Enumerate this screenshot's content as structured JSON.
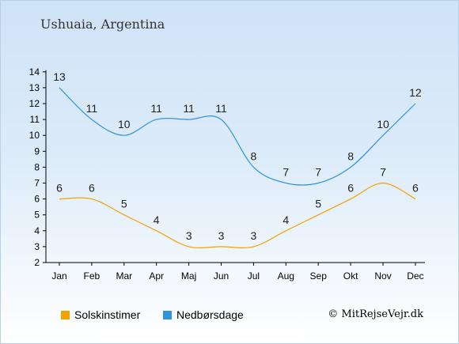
{
  "title": "Ushuaia, Argentina",
  "credit": "© MitRejseVejr.dk",
  "chart_data": {
    "type": "line",
    "categories": [
      "Jan",
      "Feb",
      "Mar",
      "Apr",
      "Maj",
      "Jun",
      "Jul",
      "Aug",
      "Sep",
      "Okt",
      "Nov",
      "Dec"
    ],
    "ylim": [
      2,
      14
    ],
    "yticks": [
      2,
      3,
      4,
      5,
      6,
      7,
      8,
      9,
      10,
      11,
      12,
      13,
      14
    ],
    "grid": false,
    "legend_position": "bottom",
    "series": [
      {
        "name": "Solskinstimer",
        "color": "#f5a100",
        "values": [
          6,
          6,
          5,
          4,
          3,
          3,
          3,
          4,
          5,
          6,
          7,
          6
        ]
      },
      {
        "name": "Nedbørsdage",
        "color": "#2f94dc",
        "values": [
          13,
          11,
          10,
          11,
          11,
          11,
          8,
          7,
          7,
          8,
          10,
          12
        ]
      }
    ]
  }
}
